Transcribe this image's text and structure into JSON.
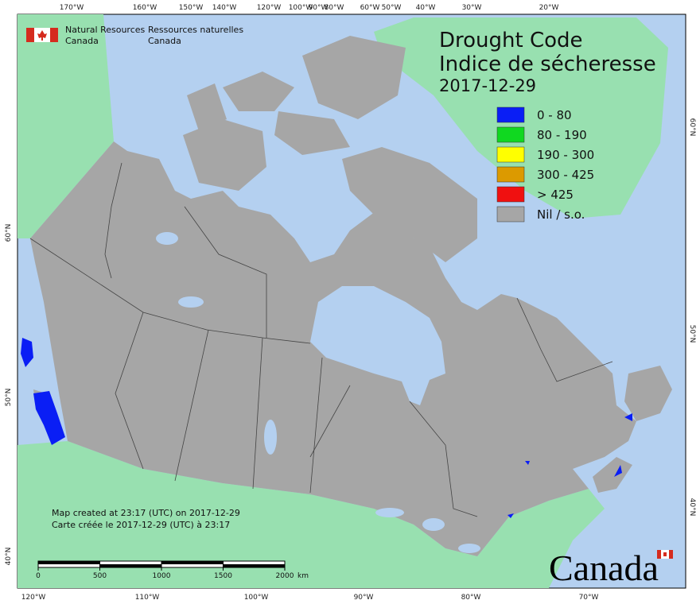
{
  "header": {
    "agency_en": [
      "Natural Resources",
      "Canada"
    ],
    "agency_fr": [
      "Ressources naturelles",
      "Canada"
    ]
  },
  "title": {
    "en": "Drought Code",
    "fr": "Indice de sécheresse",
    "date": "2017-12-29"
  },
  "legend": [
    {
      "label": "0 - 80",
      "color": "#0a1ef5"
    },
    {
      "label": "80 - 190",
      "color": "#10d820"
    },
    {
      "label": "190 - 300",
      "color": "#ffff00"
    },
    {
      "label": "300 - 425",
      "color": "#dc9a00"
    },
    {
      "label": "> 425",
      "color": "#f01010"
    },
    {
      "label": "Nil / s.o.",
      "color": "#a6a6a6"
    }
  ],
  "graticule": {
    "top": [
      "170°W",
      "160°W",
      "150°W",
      "140°W",
      "120°W",
      "100°W",
      "90°W",
      "80°W",
      "60°W",
      "50°W",
      "40°W",
      "30°W",
      "20°W"
    ],
    "bottom": [
      "120°W",
      "110°W",
      "100°W",
      "90°W",
      "80°W",
      "70°W"
    ],
    "left": [
      "60°N",
      "50°N",
      "40°N"
    ],
    "right": [
      "60°N",
      "50°N",
      "40°N"
    ]
  },
  "footer": {
    "created_en": "Map created at 23:17 (UTC) on 2017-12-29",
    "created_fr": "Carte créée le 2017-12-29 (UTC) à 23:17"
  },
  "scale_bar": {
    "ticks": [
      0,
      500,
      1000,
      1500,
      2000
    ],
    "unit": "km"
  },
  "wordmark": "Canada"
}
